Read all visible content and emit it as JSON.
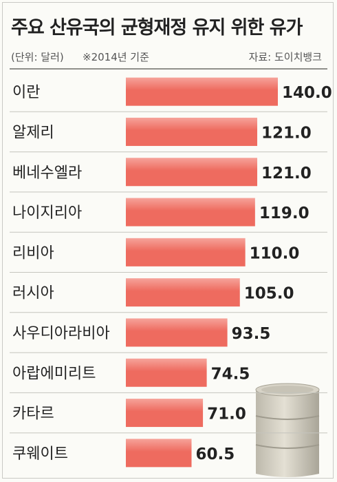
{
  "chart_data": {
    "type": "bar",
    "orientation": "horizontal",
    "title": "주요 산유국의 균형재정 유지 위한 유가",
    "unit_note": "(단위: 달러)",
    "basis_note": "※2014년 기준",
    "source": "자료: 도이치뱅크",
    "categories": [
      "이란",
      "알제리",
      "베네수엘라",
      "나이지리아",
      "리비아",
      "러시아",
      "사우디아라비아",
      "아랍에미리트",
      "카타르",
      "쿠웨이트"
    ],
    "values": [
      140.0,
      121.0,
      121.0,
      119.0,
      110.0,
      105.0,
      93.5,
      74.5,
      71.0,
      60.5
    ],
    "value_labels": [
      "140.0",
      "121.0",
      "121.0",
      "119.0",
      "110.0",
      "105.0",
      "93.5",
      "74.5",
      "71.0",
      "60.5"
    ],
    "xlim": [
      0,
      140
    ],
    "grid": false,
    "bar_color": "#ee6b5f",
    "bar_color_light": "#f6a39a"
  }
}
